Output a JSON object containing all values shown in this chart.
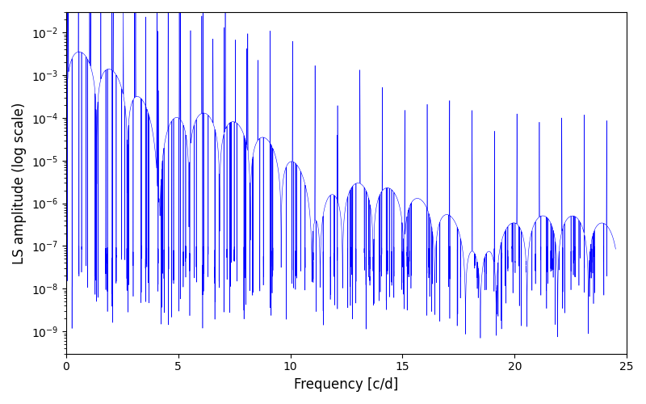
{
  "xlabel": "Frequency [c/d]",
  "ylabel": "LS amplitude (log scale)",
  "line_color": "#0000FF",
  "background_color": "#ffffff",
  "xlim": [
    0,
    25
  ],
  "ylim": [
    3e-10,
    0.03
  ],
  "freq_max": 24.5,
  "n_points": 15000,
  "seed": 42,
  "figsize": [
    8.0,
    5.0
  ],
  "dpi": 100
}
